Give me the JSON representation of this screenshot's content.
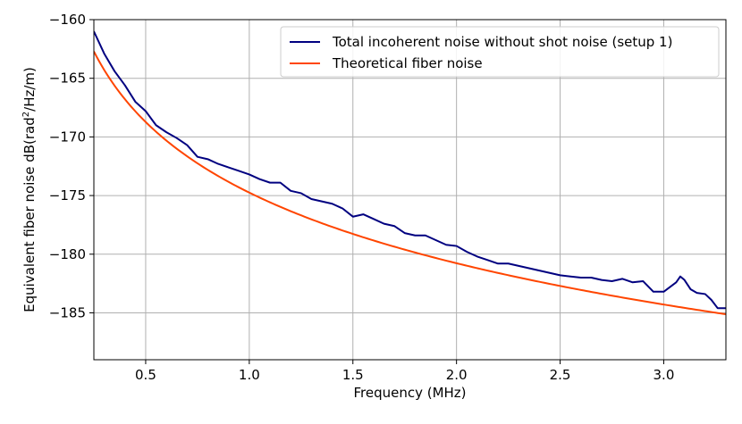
{
  "chart_data": {
    "type": "line",
    "title": "",
    "xlabel": "Frequency (MHz)",
    "ylabel_main": "Equivalent fiber noise  dB(rad",
    "ylabel_sup": "2",
    "ylabel_tail": "/Hz/m)",
    "xlim": [
      0.25,
      3.3
    ],
    "ylim": [
      -189,
      -160
    ],
    "xticks": [
      0.5,
      1.0,
      1.5,
      2.0,
      2.5,
      3.0
    ],
    "xtick_labels": [
      "0.5",
      "1.0",
      "1.5",
      "2.0",
      "2.5",
      "3.0"
    ],
    "yticks": [
      -160,
      -165,
      -170,
      -175,
      -180,
      -185
    ],
    "ytick_labels": [
      "−160",
      "−165",
      "−170",
      "−175",
      "−180",
      "−185"
    ],
    "grid": true,
    "legend_position": "top-right",
    "series": [
      {
        "name": "Total incoherent noise without shot noise (setup 1)",
        "color": "#000080",
        "x": [
          0.25,
          0.3,
          0.35,
          0.4,
          0.45,
          0.5,
          0.55,
          0.6,
          0.65,
          0.7,
          0.75,
          0.8,
          0.85,
          0.9,
          0.95,
          1.0,
          1.05,
          1.1,
          1.15,
          1.2,
          1.25,
          1.3,
          1.35,
          1.4,
          1.45,
          1.5,
          1.55,
          1.6,
          1.65,
          1.7,
          1.75,
          1.8,
          1.85,
          1.9,
          1.95,
          2.0,
          2.05,
          2.1,
          2.15,
          2.2,
          2.25,
          2.3,
          2.35,
          2.4,
          2.45,
          2.5,
          2.55,
          2.6,
          2.65,
          2.7,
          2.75,
          2.8,
          2.85,
          2.9,
          2.95,
          3.0,
          3.03,
          3.06,
          3.08,
          3.1,
          3.13,
          3.16,
          3.2,
          3.23,
          3.26,
          3.3
        ],
        "y": [
          -161.0,
          -162.9,
          -164.4,
          -165.6,
          -167.0,
          -167.8,
          -169.0,
          -169.6,
          -170.1,
          -170.7,
          -171.7,
          -171.9,
          -172.3,
          -172.6,
          -172.9,
          -173.2,
          -173.6,
          -173.9,
          -173.9,
          -174.6,
          -174.8,
          -175.3,
          -175.5,
          -175.7,
          -176.1,
          -176.8,
          -176.6,
          -177.0,
          -177.4,
          -177.6,
          -178.2,
          -178.4,
          -178.4,
          -178.8,
          -179.2,
          -179.3,
          -179.8,
          -180.2,
          -180.5,
          -180.8,
          -180.8,
          -181.0,
          -181.2,
          -181.4,
          -181.6,
          -181.8,
          -181.9,
          -182.0,
          -182.0,
          -182.2,
          -182.3,
          -182.1,
          -182.4,
          -182.3,
          -183.2,
          -183.2,
          -182.8,
          -182.4,
          -181.9,
          -182.2,
          -183.0,
          -183.3,
          -183.4,
          -183.9,
          -184.6,
          -184.6
        ]
      },
      {
        "name": "Theoretical fiber noise",
        "color": "#ff4500",
        "formula": "y = -174.75 - 20*log10(f) for f in MHz"
      }
    ]
  }
}
